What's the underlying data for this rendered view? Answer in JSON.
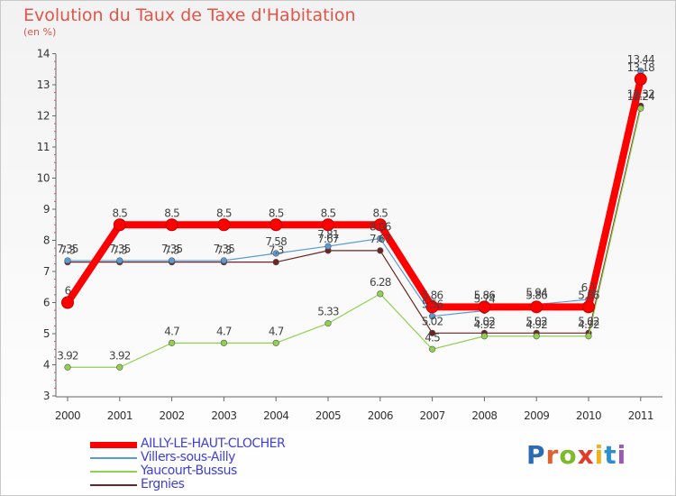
{
  "title": "Evolution du Taux de Taxe d'Habitation",
  "subtitle": "(en %)",
  "logo": {
    "text": "Proxiti",
    "colors": [
      "#2e6bb5",
      "#e0612a",
      "#7fb92e",
      "#e33a2a",
      "#f3b21c",
      "#2e8fd0",
      "#9b59b6"
    ]
  },
  "chart_data": {
    "type": "line",
    "title": "Evolution du Taux de Taxe d'Habitation",
    "ylabel": "(en %)",
    "xlabel": "",
    "x": [
      "2000",
      "2001",
      "2002",
      "2003",
      "2004",
      "2005",
      "2006",
      "2007",
      "2008",
      "2009",
      "2010",
      "2011"
    ],
    "ylim": [
      3,
      14
    ],
    "yticks": [
      "3",
      "4",
      "5",
      "6",
      "7",
      "8",
      "9",
      "10",
      "11",
      "12",
      "13",
      "14"
    ],
    "series": [
      {
        "name": "Ergnies",
        "color": "#6e2424",
        "width": 1.2,
        "values": [
          7.3,
          7.3,
          7.3,
          7.3,
          7.3,
          7.67,
          7.67,
          5.02,
          5.02,
          5.02,
          5.02,
          12.32
        ],
        "labels": [
          "7.3",
          "7.3",
          "7.3",
          "7.3",
          "7.3",
          "7.67",
          "7.67",
          "5.02",
          "5.02",
          "5.02",
          "5.02",
          "12.32"
        ]
      },
      {
        "name": "Yaucourt-Bussus",
        "color": "#92d050",
        "width": 1.2,
        "values": [
          3.92,
          3.92,
          4.7,
          4.7,
          4.7,
          5.33,
          6.28,
          4.5,
          4.92,
          4.92,
          4.92,
          12.24
        ],
        "labels": [
          "3.92",
          "3.92",
          "4.7",
          "4.7",
          "4.7",
          "5.33",
          "6.28",
          "4.5",
          "4.92",
          "4.92",
          "4.92",
          "12.24"
        ]
      },
      {
        "name": "Villers-sous-Ailly",
        "color": "#5b9bd5",
        "width": 1.2,
        "values": [
          7.35,
          7.35,
          7.35,
          7.35,
          7.58,
          7.81,
          8.06,
          5.56,
          5.74,
          5.94,
          6.1,
          13.44
        ],
        "labels": [
          "7.35",
          "7.35",
          "7.35",
          "7.35",
          "7.58",
          "7.81",
          "8.06",
          "5.56",
          "5.74",
          "5.94",
          "6.1",
          "13.44"
        ]
      },
      {
        "name": "AILLY-LE-HAUT-CLOCHER",
        "color": "#ff0000",
        "width": 8,
        "values": [
          6,
          8.5,
          8.5,
          8.5,
          8.5,
          8.5,
          8.5,
          5.86,
          5.86,
          5.86,
          5.86,
          13.18
        ],
        "labels": [
          "6",
          "8.5",
          "8.5",
          "8.5",
          "8.5",
          "8.5",
          "8.5",
          "5.86",
          "5.86",
          "5.86",
          "5.86",
          "13.18"
        ]
      }
    ],
    "legend": {
      "placement": "bottom-left",
      "items": [
        {
          "name": "AILLY-LE-HAUT-CLOCHER",
          "color": "#ff0000",
          "text_color": "#3f3fd9"
        },
        {
          "name": "Villers-sous-Ailly",
          "color": "#5b9bd5",
          "text_color": "#3f3fd9"
        },
        {
          "name": "Yaucourt-Bussus",
          "color": "#92d050",
          "text_color": "#3f3fd9"
        },
        {
          "name": "Ergnies",
          "color": "#6e2424",
          "text_color": "#3f3fd9"
        }
      ]
    }
  }
}
